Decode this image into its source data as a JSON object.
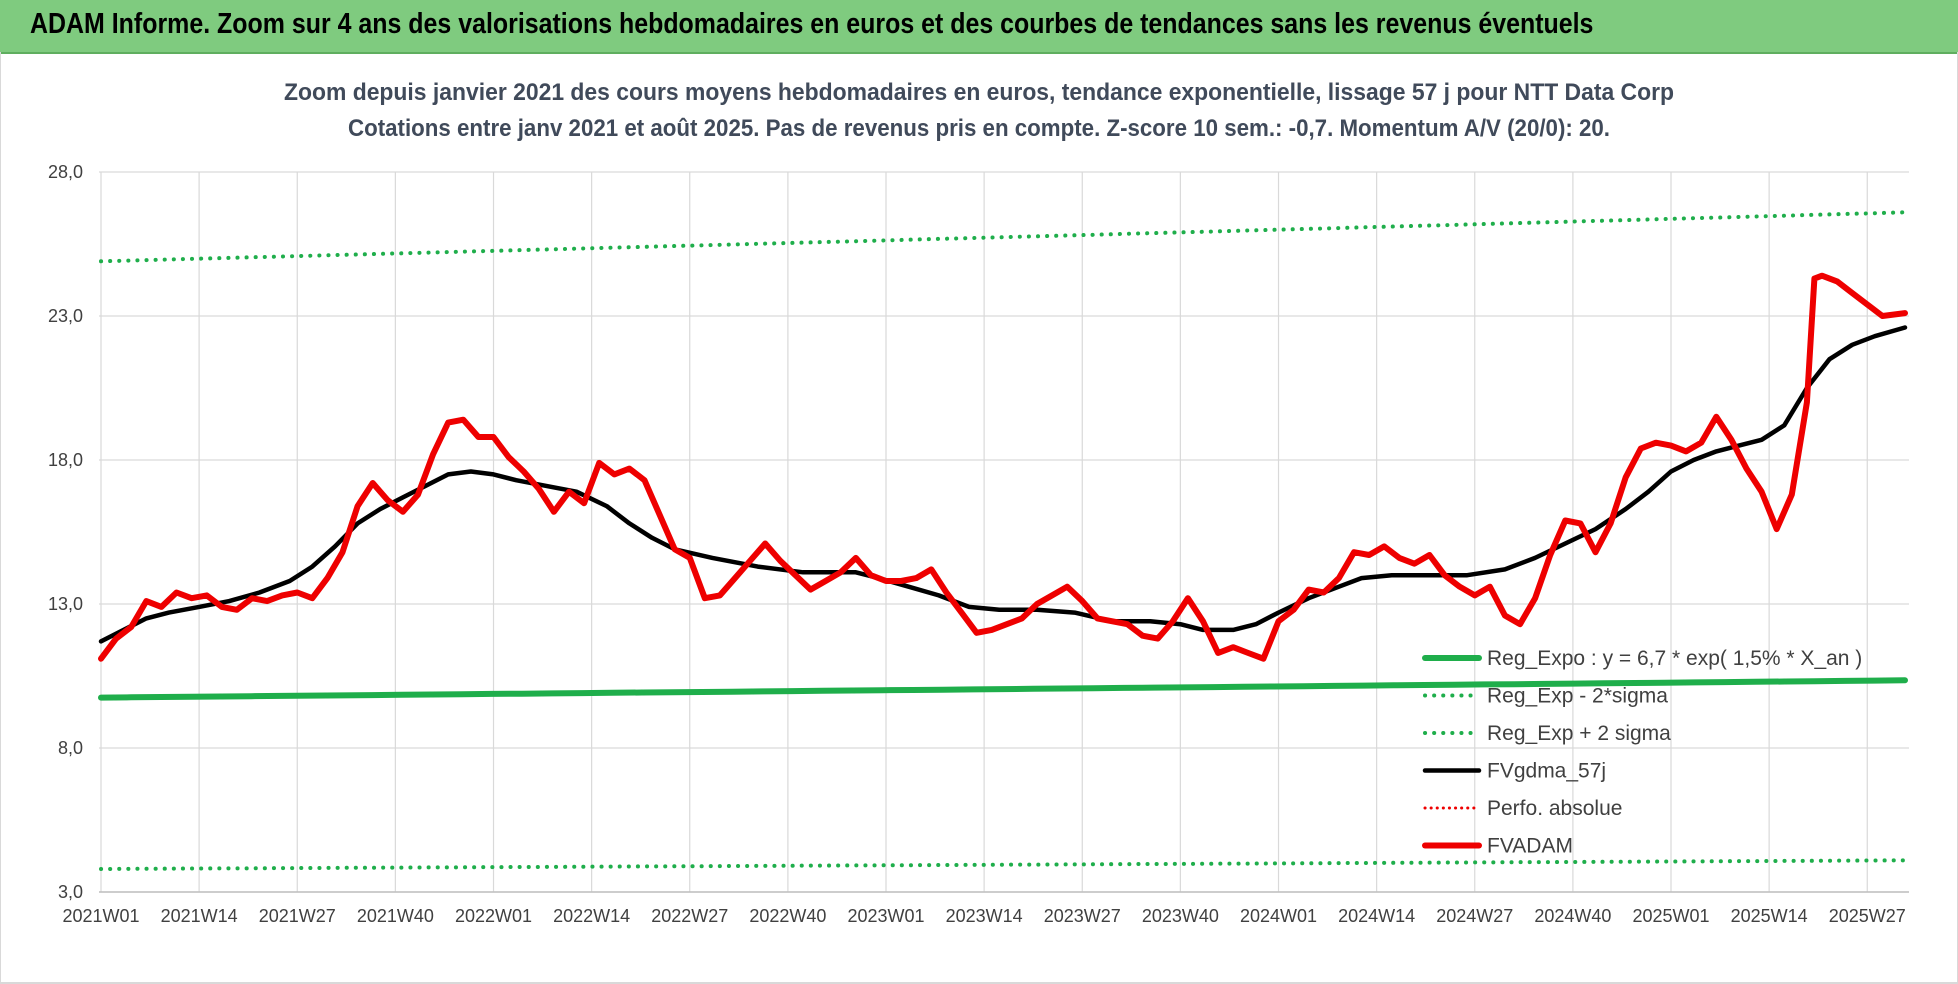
{
  "banner": {
    "title": "ADAM Informe. Zoom sur 4 ans des valorisations hebdomadaires en euros et des courbes de tendances sans les revenus éventuels"
  },
  "colors": {
    "banner_bg": "#7fcb7f",
    "reg_expo": "#1fae4b",
    "fvgdma": "#000000",
    "fvadam": "#ee0000",
    "perfo": "#ee0000",
    "grid": "#d9d9d9"
  },
  "chart_data": {
    "type": "line",
    "title": "Zoom depuis janvier 2021 des cours moyens hebdomadaires en euros, tendance exponentielle, lissage 57 j pour NTT Data Corp",
    "subtitle": "Cotations entre janv 2021 et août 2025.  Pas de revenus pris en compte. Z-score 10 sem.: -0,7. Momentum A/V (20/0): 20.",
    "ylim": [
      3.0,
      28.0
    ],
    "yticks": [
      "3,0",
      "8,0",
      "13,0",
      "18,0",
      "23,0",
      "28,0"
    ],
    "grid": "vertical+horizontal",
    "x_tick_labels": [
      "2021W01",
      "2021W14",
      "2021W27",
      "2021W40",
      "2022W01",
      "2022W14",
      "2022W27",
      "2022W40",
      "2023W01",
      "2023W14",
      "2023W27",
      "2023W40",
      "2024W01",
      "2024W14",
      "2024W27",
      "2024W40",
      "2025W01",
      "2025W14",
      "2025W27"
    ],
    "x_start": "2021W01",
    "x_end": "2025W32",
    "legend_position": "lower-right",
    "legend": [
      {
        "label": "Reg_Expo : y = 6,7 * exp( 1,5% *  X_an )",
        "style": "solid-green"
      },
      {
        "label": "Reg_Exp - 2*sigma",
        "style": "dotted-green"
      },
      {
        "label": "Reg_Exp + 2 sigma",
        "style": "dotted-green"
      },
      {
        "label": "FVgdma_57j",
        "style": "solid-black"
      },
      {
        "label": "Perfo. absolue",
        "style": "dotted-red"
      },
      {
        "label": "FVADAM",
        "style": "solid-red"
      }
    ],
    "series": [
      {
        "name": "Reg_Expo : y = 6,7 * exp( 1,5% *  X_an )",
        "points": [
          [
            "2021W01",
            9.75
          ],
          [
            "2025W32",
            10.35
          ]
        ]
      },
      {
        "name": "Reg_Exp - 2*sigma",
        "points": [
          [
            "2021W01",
            3.8
          ],
          [
            "2025W32",
            4.1
          ]
        ]
      },
      {
        "name": "Reg_Exp + 2 sigma",
        "points": [
          [
            "2021W01",
            24.9
          ],
          [
            "2025W32",
            26.6
          ]
        ]
      },
      {
        "name": "FVgdma_57j",
        "points": [
          [
            "2021W01",
            11.7
          ],
          [
            "2021W04",
            12.1
          ],
          [
            "2021W07",
            12.5
          ],
          [
            "2021W10",
            12.7
          ],
          [
            "2021W14",
            12.9
          ],
          [
            "2021W18",
            13.1
          ],
          [
            "2021W22",
            13.4
          ],
          [
            "2021W26",
            13.8
          ],
          [
            "2021W29",
            14.3
          ],
          [
            "2021W32",
            15.0
          ],
          [
            "2021W35",
            15.8
          ],
          [
            "2021W38",
            16.3
          ],
          [
            "2021W41",
            16.7
          ],
          [
            "2021W44",
            17.1
          ],
          [
            "2021W47",
            17.5
          ],
          [
            "2021W50",
            17.6
          ],
          [
            "2022W01",
            17.5
          ],
          [
            "2022W04",
            17.3
          ],
          [
            "2022W08",
            17.1
          ],
          [
            "2022W12",
            16.9
          ],
          [
            "2022W16",
            16.4
          ],
          [
            "2022W19",
            15.8
          ],
          [
            "2022W22",
            15.3
          ],
          [
            "2022W25",
            14.9
          ],
          [
            "2022W30",
            14.6
          ],
          [
            "2022W36",
            14.3
          ],
          [
            "2022W42",
            14.1
          ],
          [
            "2022W49",
            14.1
          ],
          [
            "2022W52",
            13.9
          ],
          [
            "2023W04",
            13.6
          ],
          [
            "2023W08",
            13.3
          ],
          [
            "2023W12",
            12.9
          ],
          [
            "2023W16",
            12.8
          ],
          [
            "2023W21",
            12.8
          ],
          [
            "2023W26",
            12.7
          ],
          [
            "2023W31",
            12.4
          ],
          [
            "2023W36",
            12.4
          ],
          [
            "2023W40",
            12.3
          ],
          [
            "2023W43",
            12.1
          ],
          [
            "2023W47",
            12.1
          ],
          [
            "2023W50",
            12.3
          ],
          [
            "2024W01",
            12.7
          ],
          [
            "2024W05",
            13.2
          ],
          [
            "2024W09",
            13.6
          ],
          [
            "2024W12",
            13.9
          ],
          [
            "2024W16",
            14.0
          ],
          [
            "2024W21",
            14.0
          ],
          [
            "2024W26",
            14.0
          ],
          [
            "2024W31",
            14.2
          ],
          [
            "2024W35",
            14.6
          ],
          [
            "2024W39",
            15.1
          ],
          [
            "2024W43",
            15.6
          ],
          [
            "2024W47",
            16.3
          ],
          [
            "2024W50",
            16.9
          ],
          [
            "2025W01",
            17.6
          ],
          [
            "2025W04",
            18.0
          ],
          [
            "2025W07",
            18.3
          ],
          [
            "2025W10",
            18.5
          ],
          [
            "2025W13",
            18.7
          ],
          [
            "2025W16",
            19.2
          ],
          [
            "2025W19",
            20.5
          ],
          [
            "2025W22",
            21.5
          ],
          [
            "2025W25",
            22.0
          ],
          [
            "2025W28",
            22.3
          ],
          [
            "2025W32",
            22.6
          ]
        ]
      },
      {
        "name": "Perfo. absolue",
        "points": []
      },
      {
        "name": "FVADAM",
        "points": [
          [
            "2021W01",
            11.1
          ],
          [
            "2021W03",
            11.8
          ],
          [
            "2021W05",
            12.2
          ],
          [
            "2021W07",
            13.1
          ],
          [
            "2021W09",
            12.9
          ],
          [
            "2021W11",
            13.4
          ],
          [
            "2021W13",
            13.2
          ],
          [
            "2021W15",
            13.3
          ],
          [
            "2021W17",
            12.9
          ],
          [
            "2021W19",
            12.8
          ],
          [
            "2021W21",
            13.2
          ],
          [
            "2021W23",
            13.1
          ],
          [
            "2021W25",
            13.3
          ],
          [
            "2021W27",
            13.4
          ],
          [
            "2021W29",
            13.2
          ],
          [
            "2021W31",
            13.9
          ],
          [
            "2021W33",
            14.8
          ],
          [
            "2021W35",
            16.4
          ],
          [
            "2021W37",
            17.2
          ],
          [
            "2021W39",
            16.6
          ],
          [
            "2021W41",
            16.2
          ],
          [
            "2021W43",
            16.8
          ],
          [
            "2021W45",
            18.2
          ],
          [
            "2021W47",
            19.3
          ],
          [
            "2021W49",
            19.4
          ],
          [
            "2021W51",
            18.8
          ],
          [
            "2022W01",
            18.8
          ],
          [
            "2022W03",
            18.1
          ],
          [
            "2022W05",
            17.6
          ],
          [
            "2022W07",
            17.0
          ],
          [
            "2022W09",
            16.2
          ],
          [
            "2022W11",
            16.9
          ],
          [
            "2022W13",
            16.5
          ],
          [
            "2022W15",
            17.9
          ],
          [
            "2022W17",
            17.5
          ],
          [
            "2022W19",
            17.7
          ],
          [
            "2022W21",
            17.3
          ],
          [
            "2022W23",
            16.1
          ],
          [
            "2022W25",
            14.9
          ],
          [
            "2022W27",
            14.6
          ],
          [
            "2022W29",
            13.2
          ],
          [
            "2022W31",
            13.3
          ],
          [
            "2022W33",
            13.9
          ],
          [
            "2022W35",
            14.5
          ],
          [
            "2022W37",
            15.1
          ],
          [
            "2022W39",
            14.5
          ],
          [
            "2022W41",
            14.0
          ],
          [
            "2022W43",
            13.5
          ],
          [
            "2022W45",
            13.8
          ],
          [
            "2022W47",
            14.1
          ],
          [
            "2022W49",
            14.6
          ],
          [
            "2022W51",
            14.0
          ],
          [
            "2023W01",
            13.8
          ],
          [
            "2023W03",
            13.8
          ],
          [
            "2023W05",
            13.9
          ],
          [
            "2023W07",
            14.2
          ],
          [
            "2023W09",
            13.4
          ],
          [
            "2023W11",
            12.7
          ],
          [
            "2023W13",
            12.0
          ],
          [
            "2023W15",
            12.1
          ],
          [
            "2023W17",
            12.3
          ],
          [
            "2023W19",
            12.5
          ],
          [
            "2023W21",
            13.0
          ],
          [
            "2023W23",
            13.3
          ],
          [
            "2023W25",
            13.6
          ],
          [
            "2023W27",
            13.1
          ],
          [
            "2023W29",
            12.5
          ],
          [
            "2023W31",
            12.4
          ],
          [
            "2023W33",
            12.3
          ],
          [
            "2023W35",
            11.9
          ],
          [
            "2023W37",
            11.8
          ],
          [
            "2023W39",
            12.4
          ],
          [
            "2023W41",
            13.2
          ],
          [
            "2023W43",
            12.4
          ],
          [
            "2023W45",
            11.3
          ],
          [
            "2023W47",
            11.5
          ],
          [
            "2023W49",
            11.3
          ],
          [
            "2023W51",
            11.1
          ],
          [
            "2024W01",
            12.4
          ],
          [
            "2024W03",
            12.8
          ],
          [
            "2024W05",
            13.5
          ],
          [
            "2024W07",
            13.4
          ],
          [
            "2024W09",
            13.9
          ],
          [
            "2024W11",
            14.8
          ],
          [
            "2024W13",
            14.7
          ],
          [
            "2024W15",
            15.0
          ],
          [
            "2024W17",
            14.6
          ],
          [
            "2024W19",
            14.4
          ],
          [
            "2024W21",
            14.7
          ],
          [
            "2024W23",
            14.0
          ],
          [
            "2024W25",
            13.6
          ],
          [
            "2024W27",
            13.3
          ],
          [
            "2024W29",
            13.6
          ],
          [
            "2024W31",
            12.6
          ],
          [
            "2024W33",
            12.3
          ],
          [
            "2024W35",
            13.2
          ],
          [
            "2024W37",
            14.7
          ],
          [
            "2024W39",
            15.9
          ],
          [
            "2024W41",
            15.8
          ],
          [
            "2024W43",
            14.8
          ],
          [
            "2024W45",
            15.8
          ],
          [
            "2024W47",
            17.4
          ],
          [
            "2024W49",
            18.4
          ],
          [
            "2024W51",
            18.6
          ],
          [
            "2025W01",
            18.5
          ],
          [
            "2025W03",
            18.3
          ],
          [
            "2025W05",
            18.6
          ],
          [
            "2025W07",
            19.5
          ],
          [
            "2025W09",
            18.7
          ],
          [
            "2025W11",
            17.7
          ],
          [
            "2025W13",
            16.9
          ],
          [
            "2025W15",
            15.6
          ],
          [
            "2025W17",
            16.8
          ],
          [
            "2025W19",
            20.0
          ],
          [
            "2025W20",
            24.3
          ],
          [
            "2025W21",
            24.4
          ],
          [
            "2025W23",
            24.2
          ],
          [
            "2025W25",
            23.8
          ],
          [
            "2025W27",
            23.4
          ],
          [
            "2025W29",
            23.0
          ],
          [
            "2025W32",
            23.1
          ]
        ]
      }
    ]
  }
}
